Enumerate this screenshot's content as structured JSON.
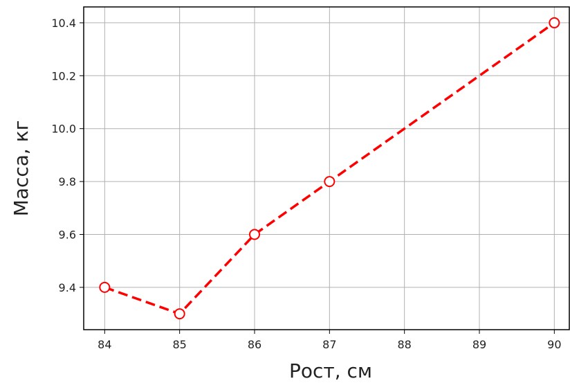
{
  "chart_data": {
    "type": "line",
    "title": "",
    "xlabel": "Рост, см",
    "ylabel": "Масса, кг",
    "xlim": [
      83.72,
      90.2
    ],
    "ylim": [
      9.24,
      10.46
    ],
    "x_ticks": [
      84,
      85,
      86,
      87,
      88,
      89,
      90
    ],
    "y_ticks": [
      9.4,
      9.6,
      9.8,
      10.0,
      10.2,
      10.4
    ],
    "x_tick_labels": [
      "84",
      "85",
      "86",
      "87",
      "88",
      "89",
      "90"
    ],
    "y_tick_labels": [
      "9.4",
      "9.6",
      "9.8",
      "10.0",
      "10.2",
      "10.4"
    ],
    "grid": true,
    "series": [
      {
        "x": [
          84,
          85,
          86,
          87,
          90
        ],
        "y": [
          9.4,
          9.3,
          9.6,
          9.8,
          10.4
        ],
        "color": "#ff0000",
        "linestyle": "dashed",
        "marker": "circle",
        "marker_face": "#ffffff"
      }
    ]
  }
}
